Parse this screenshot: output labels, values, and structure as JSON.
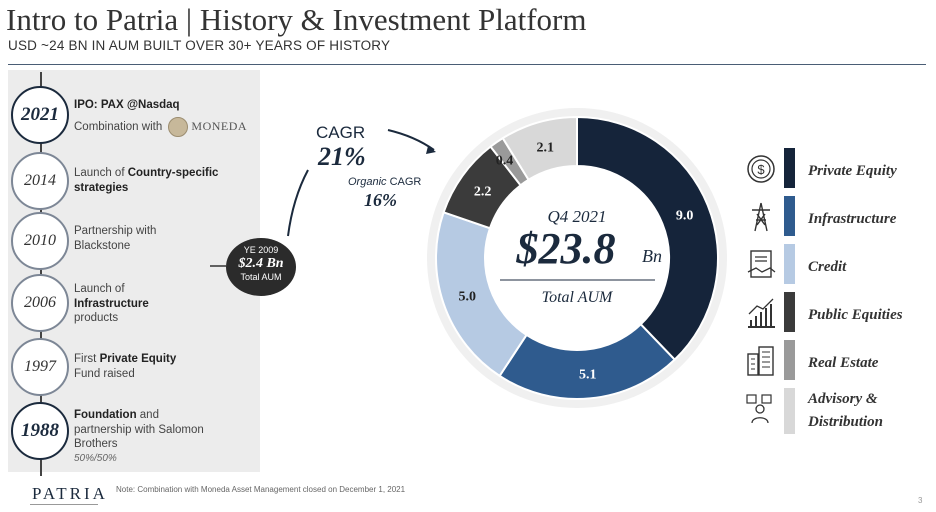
{
  "header": {
    "title": "Intro to Patria | History & Investment Platform",
    "subtitle": "USD ~24 BN IN AUM BUILT OVER 30+ YEARS OF HISTORY"
  },
  "timeline": [
    {
      "year": "2021",
      "line1": "IPO: PAX @Nasdaq",
      "line2": "Combination with",
      "logo_text": "MONEDA"
    },
    {
      "year": "2014",
      "pre": "Launch of ",
      "bold": "Country-specific strategies"
    },
    {
      "year": "2010",
      "text": "Partnership with Blackstone"
    },
    {
      "year": "2006",
      "pre": "Launch of ",
      "bold": "Infrastructure",
      "post": "products"
    },
    {
      "year": "1997",
      "pre": "First ",
      "bold": "Private Equity",
      "post": "Fund raised"
    },
    {
      "year": "1988",
      "bold": "Foundation",
      "post": " and partnership with Salomon Brothers",
      "small": "50%/50%"
    }
  ],
  "bubble": {
    "top": "YE 2009",
    "value": "$2.4 Bn",
    "bottom": "Total AUM"
  },
  "cagr": {
    "label": "CAGR",
    "value": "21%",
    "organic_prefix": "Organic",
    "organic_label": " CAGR",
    "organic_value": "16%"
  },
  "chart_data": {
    "type": "pie",
    "center": {
      "top": "Q4 2021",
      "value": "$23.8",
      "unit": "Bn",
      "label": "Total AUM"
    },
    "slices": [
      {
        "label": "Private Equity",
        "value": 9.0,
        "display": "9.0",
        "color": "#15243a"
      },
      {
        "label": "Infrastructure",
        "value": 5.1,
        "display": "5.1",
        "color": "#2f5b8e"
      },
      {
        "label": "Credit",
        "value": 5.0,
        "display": "5.0",
        "color": "#b6cae3"
      },
      {
        "label": "Public Equities",
        "value": 2.2,
        "display": "2.2",
        "color": "#3b3b3b"
      },
      {
        "label": "Real Estate",
        "value": 0.4,
        "display": "0.4",
        "color": "#9a9a9a"
      },
      {
        "label": "Advisory & Distribution",
        "value": 2.1,
        "display": "2.1",
        "color": "#d8d8d8"
      }
    ]
  },
  "legend": [
    {
      "label": "Private Equity",
      "icon": "dollar-cycle-icon",
      "color": "#15243a"
    },
    {
      "label": "Infrastructure",
      "icon": "tower-icon",
      "color": "#2f5b8e"
    },
    {
      "label": "Credit",
      "icon": "handshake-document-icon",
      "color": "#b6cae3"
    },
    {
      "label": "Public Equities",
      "icon": "chart-growth-icon",
      "color": "#3b3b3b"
    },
    {
      "label": "Real Estate",
      "icon": "buildings-icon",
      "color": "#9a9a9a"
    },
    {
      "label": "Advisory &",
      "label2": "Distribution",
      "icon": "advisor-icon",
      "color": "#d8d8d8"
    }
  ],
  "footer": {
    "logo": "PATRIA",
    "note": "Note: Combination with Moneda Asset Management closed on December 1, 2021",
    "page": "3"
  }
}
